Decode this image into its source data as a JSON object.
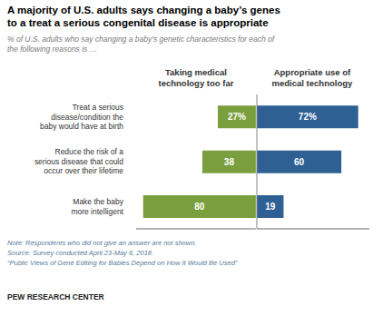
{
  "chart_data": {
    "type": "bar",
    "orientation": "horizontal",
    "title": "A majority of U.S. adults says changing a baby’s genes\nto a treat a serious congenital disease is appropriate",
    "subtitle": "% of U.S. adults who say changing a baby’s genetic characteristics for each of\nthe following reasons is …",
    "note": "Note: Respondents who did not give an answer are not shown.\nSource: Survey conducted April 23-May 6, 2018.\n“Public Views of Gene Editing for Babies Depend on How It Would Be Used”",
    "footer": "PEW RESEARCH CENTER",
    "categories": [
      "Treat a serious\ndisease/condition the\nbaby would have at birth",
      "Reduce the risk of a\nserious disease that could\noccur over their lifetime",
      "Make the baby\nmore intelligent"
    ],
    "series": [
      {
        "name": "Taking medical\ntechnology too far",
        "color": "#7b9e3e",
        "values": [
          27,
          38,
          80
        ],
        "value_labels": [
          "27%",
          "38",
          "80"
        ]
      },
      {
        "name": "Appropriate use of\nmedical technology",
        "color": "#2e6094",
        "values": [
          72,
          60,
          19
        ],
        "value_labels": [
          "72%",
          "60",
          "19"
        ]
      }
    ],
    "xlim": [
      -85,
      80
    ],
    "data_labels": true,
    "tick_labels": "y"
  }
}
